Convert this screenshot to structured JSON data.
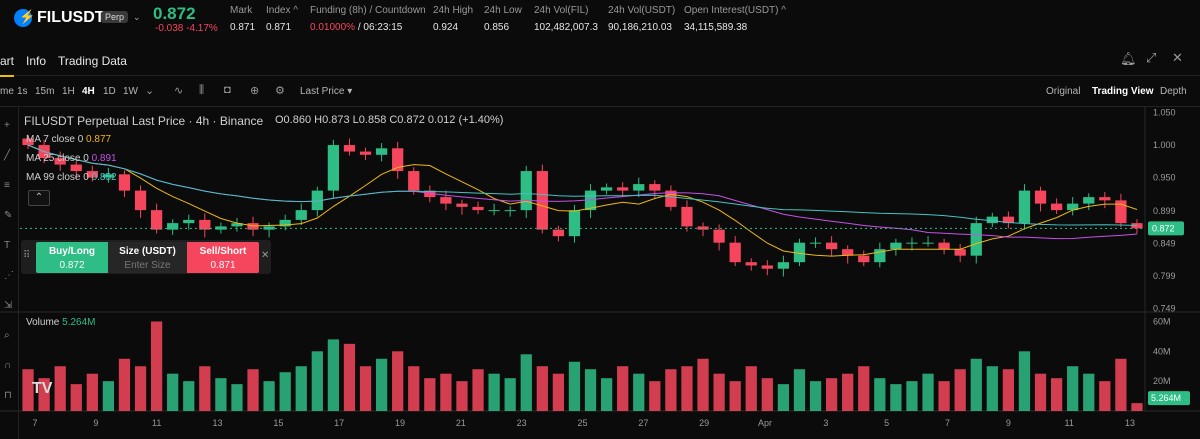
{
  "ticker": {
    "symbol": "FILUSDT",
    "badge": "Perp",
    "last_price": "0.872",
    "change": "-0.038",
    "change_pct": "-4.17%",
    "stats": [
      {
        "label": "Mark",
        "value": "0.871"
      },
      {
        "label": "Index ^",
        "value": "0.871"
      },
      {
        "label": "Funding (8h) / Countdown",
        "value": "0.01000%",
        "value2": "/ 06:23:15"
      },
      {
        "label": "24h High",
        "value": "0.924"
      },
      {
        "label": "24h Low",
        "value": "0.856"
      },
      {
        "label": "24h Vol(FIL)",
        "value": "102,482,007.3"
      },
      {
        "label": "24h Vol(USDT)",
        "value": "90,186,210.03"
      },
      {
        "label": "Open Interest(USDT) ^",
        "value": "34,115,589.38"
      }
    ]
  },
  "subnav": {
    "tabs": [
      "art",
      "Info",
      "Trading Data"
    ],
    "icons": [
      "bell-icon",
      "expand-icon",
      "close-icon"
    ]
  },
  "toolbar": {
    "timeframes": [
      "me",
      "1s",
      "15m",
      "1H",
      "4H",
      "1D",
      "1W"
    ],
    "active_timeframe": "4H",
    "price_type": "Last Price",
    "views": [
      "Original",
      "Trading View",
      "Depth"
    ],
    "active_view": "Trading View"
  },
  "chart_header": {
    "title": "FILUSDT Perpetual Last Price · 4h · Binance",
    "ohlc": "O0.860 H0.873 L0.858 C0.872 0.012 (+1.40%)",
    "ma7_label": "MA 7 close 0",
    "ma7_value": "0.877",
    "ma25_label": "MA 25 close 0",
    "ma25_value": "0.891",
    "ma99_label": "MA 99 close 0",
    "ma99_value": "0.852"
  },
  "trade_widget": {
    "buy_label": "Buy/Long",
    "buy_price": "0.872",
    "size_label": "Size (USDT)",
    "size_placeholder": "Enter Size",
    "sell_label": "Sell/Short",
    "sell_price": "0.871"
  },
  "price_axis": [
    "1.050",
    "1.000",
    "0.950",
    "0.899",
    "0.849",
    "0.799",
    "0.749"
  ],
  "price_tag": "0.872",
  "volume_axis": [
    "60M",
    "40M",
    "20M"
  ],
  "volume_label": "Volume",
  "volume_value": "5.264M",
  "volume_tag": "5.264M",
  "date_axis": [
    "7",
    "9",
    "11",
    "13",
    "15",
    "17",
    "19",
    "21",
    "23",
    "25",
    "27",
    "29",
    "Apr",
    "3",
    "5",
    "7",
    "9",
    "11",
    "13"
  ],
  "colors": {
    "up": "#2ebd85",
    "down": "#f6465d",
    "ma7": "#f0b90b",
    "ma25": "#c552e8",
    "ma99": "#48c2c2"
  },
  "chart_data": {
    "type": "candlestick",
    "interval": "4h",
    "ylim": [
      0.745,
      1.06
    ],
    "close_approx": [
      1.0,
      0.98,
      0.97,
      0.96,
      0.95,
      0.955,
      0.93,
      0.9,
      0.87,
      0.88,
      0.885,
      0.87,
      0.875,
      0.88,
      0.87,
      0.875,
      0.885,
      0.9,
      0.93,
      1.0,
      0.99,
      0.985,
      0.995,
      0.96,
      0.93,
      0.92,
      0.91,
      0.905,
      0.9,
      0.9,
      0.9,
      0.96,
      0.87,
      0.86,
      0.9,
      0.93,
      0.935,
      0.93,
      0.94,
      0.93,
      0.905,
      0.875,
      0.87,
      0.85,
      0.82,
      0.815,
      0.81,
      0.82,
      0.85,
      0.85,
      0.84,
      0.83,
      0.82,
      0.84,
      0.85,
      0.85,
      0.85,
      0.84,
      0.83,
      0.88,
      0.89,
      0.88,
      0.93,
      0.91,
      0.9,
      0.91,
      0.92,
      0.915,
      0.88,
      0.872
    ],
    "volume_millions_approx": [
      28,
      22,
      30,
      18,
      25,
      20,
      35,
      30,
      60,
      25,
      20,
      30,
      22,
      18,
      28,
      20,
      26,
      30,
      40,
      48,
      45,
      30,
      35,
      40,
      30,
      22,
      25,
      20,
      28,
      25,
      22,
      38,
      30,
      25,
      33,
      28,
      22,
      30,
      25,
      20,
      28,
      30,
      35,
      25,
      20,
      30,
      22,
      18,
      28,
      20,
      22,
      25,
      30,
      22,
      18,
      20,
      25,
      20,
      28,
      35,
      30,
      28,
      40,
      25,
      22,
      30,
      25,
      20,
      35,
      5.264
    ]
  }
}
